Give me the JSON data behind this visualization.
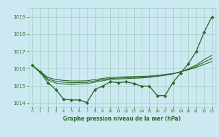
{
  "title": "Graphe pression niveau de la mer (hPa)",
  "bg_color": "#cce8f0",
  "grid_color": "#aad4cc",
  "line_color": "#2d6a2d",
  "xlim": [
    -0.5,
    23.5
  ],
  "ylim": [
    1013.8,
    1019.5
  ],
  "yticks": [
    1014,
    1015,
    1016,
    1017,
    1018,
    1019
  ],
  "xticks": [
    0,
    1,
    2,
    3,
    4,
    5,
    6,
    7,
    8,
    9,
    10,
    11,
    12,
    13,
    14,
    15,
    16,
    17,
    18,
    19,
    20,
    21,
    22,
    23
  ],
  "series": [
    {
      "x": [
        0,
        1,
        2,
        3,
        4,
        5,
        6,
        7,
        8,
        9,
        10,
        11,
        12,
        13,
        14,
        15,
        16,
        17,
        18,
        19,
        20,
        21,
        22,
        23
      ],
      "y": [
        1016.2,
        1015.8,
        1015.2,
        1014.8,
        1014.25,
        1014.2,
        1014.2,
        1014.05,
        1014.8,
        1015.0,
        1015.25,
        1015.2,
        1015.25,
        1015.15,
        1015.0,
        1015.0,
        1014.45,
        1014.45,
        1015.2,
        1015.75,
        1016.3,
        1017.0,
        1018.1,
        1019.0
      ],
      "marker": "D",
      "markersize": 2.2,
      "linewidth": 1.0
    },
    {
      "x": [
        0,
        1,
        2,
        3,
        4,
        5,
        6,
        7,
        8,
        9,
        10,
        11,
        12,
        13,
        14,
        15,
        16,
        17,
        18,
        19,
        20,
        21,
        22,
        23
      ],
      "y": [
        1016.2,
        1015.85,
        1015.5,
        1015.38,
        1015.33,
        1015.3,
        1015.3,
        1015.31,
        1015.38,
        1015.44,
        1015.5,
        1015.52,
        1015.54,
        1015.55,
        1015.56,
        1015.58,
        1015.62,
        1015.67,
        1015.73,
        1015.82,
        1015.94,
        1016.08,
        1016.25,
        1016.42
      ],
      "marker": null,
      "markersize": 0,
      "linewidth": 0.8
    },
    {
      "x": [
        0,
        1,
        2,
        3,
        4,
        5,
        6,
        7,
        8,
        9,
        10,
        11,
        12,
        13,
        14,
        15,
        16,
        17,
        18,
        19,
        20,
        21,
        22,
        23
      ],
      "y": [
        1016.2,
        1015.82,
        1015.42,
        1015.28,
        1015.23,
        1015.2,
        1015.21,
        1015.22,
        1015.3,
        1015.37,
        1015.44,
        1015.46,
        1015.48,
        1015.5,
        1015.52,
        1015.55,
        1015.6,
        1015.65,
        1015.72,
        1015.83,
        1015.97,
        1016.15,
        1016.38,
        1016.6
      ],
      "marker": null,
      "markersize": 0,
      "linewidth": 0.8
    },
    {
      "x": [
        0,
        1,
        2,
        3,
        4,
        5,
        6,
        7,
        8,
        9,
        10,
        11,
        12,
        13,
        14,
        15,
        16,
        17,
        18,
        19,
        20,
        21,
        22,
        23
      ],
      "y": [
        1016.2,
        1015.78,
        1015.35,
        1015.18,
        1015.12,
        1015.1,
        1015.12,
        1015.14,
        1015.23,
        1015.31,
        1015.39,
        1015.41,
        1015.43,
        1015.45,
        1015.47,
        1015.5,
        1015.56,
        1015.62,
        1015.7,
        1015.82,
        1016.0,
        1016.22,
        1016.52,
        1016.78
      ],
      "marker": null,
      "markersize": 0,
      "linewidth": 0.8
    }
  ]
}
